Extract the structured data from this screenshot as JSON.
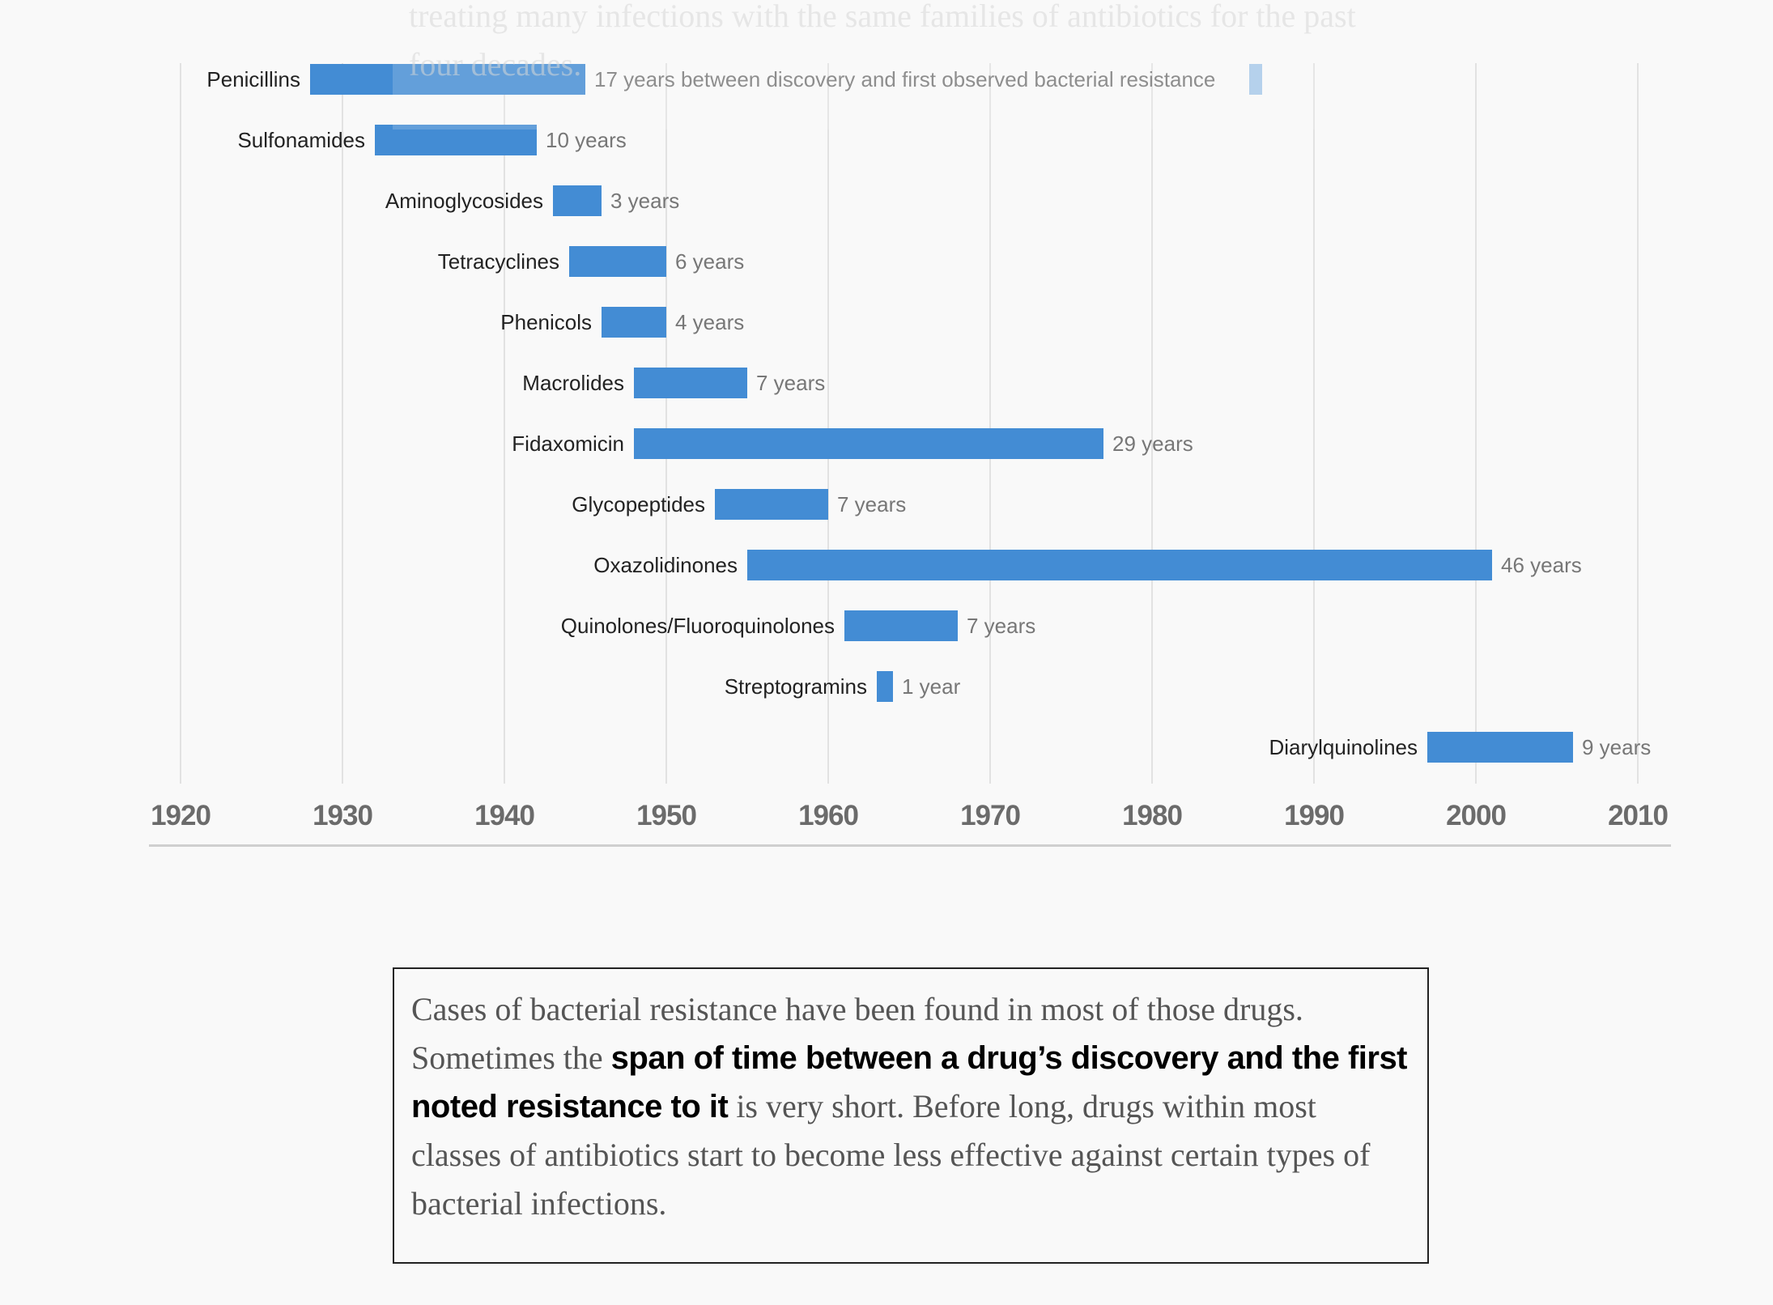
{
  "overlay_text": "treating many infections with the same families of antibiotics for the past four decades.",
  "chart_data": {
    "type": "bar",
    "orientation": "horizontal-range",
    "xlim": [
      1920,
      2010
    ],
    "xticks": [
      "1920",
      "1930",
      "1940",
      "1950",
      "1960",
      "1970",
      "1980",
      "1990",
      "2000",
      "2010"
    ],
    "grid": true,
    "bar_color": "#438cd4",
    "highlight_color": "#a6c8ea",
    "highlight_year": 1986,
    "series": [
      {
        "category": "Penicillins",
        "start": 1928,
        "end": 1945,
        "label": "17 years between discovery and first observed bacterial resistance"
      },
      {
        "category": "Sulfonamides",
        "start": 1932,
        "end": 1942,
        "label": "10 years"
      },
      {
        "category": "Aminoglycosides",
        "start": 1943,
        "end": 1946,
        "label": "3 years"
      },
      {
        "category": "Tetracyclines",
        "start": 1944,
        "end": 1950,
        "label": "6 years"
      },
      {
        "category": "Phenicols",
        "start": 1946,
        "end": 1950,
        "label": "4 years"
      },
      {
        "category": "Macrolides",
        "start": 1948,
        "end": 1955,
        "label": "7 years"
      },
      {
        "category": "Fidaxomicin",
        "start": 1948,
        "end": 1977,
        "label": "29 years"
      },
      {
        "category": "Glycopeptides",
        "start": 1953,
        "end": 1960,
        "label": "7 years"
      },
      {
        "category": "Oxazolidinones",
        "start": 1955,
        "end": 2001,
        "label": "46 years"
      },
      {
        "category": "Quinolones/Fluoroquinolones",
        "start": 1961,
        "end": 1968,
        "label": "7 years"
      },
      {
        "category": "Streptogramins",
        "start": 1963,
        "end": 1964,
        "label": "1 year"
      },
      {
        "category": "Diarylquinolines",
        "start": 1997,
        "end": 2006,
        "label": "9 years"
      }
    ]
  },
  "textbox": {
    "part1": "Cases of bacterial resistance have been found in most of those drugs. Sometimes the ",
    "bold": "span of time between a drug’s discovery and the first noted resistance to it",
    "part2": " is very short. Before long, drugs within most classes of antibiotics start to become less effective against certain types of bacterial infections."
  }
}
